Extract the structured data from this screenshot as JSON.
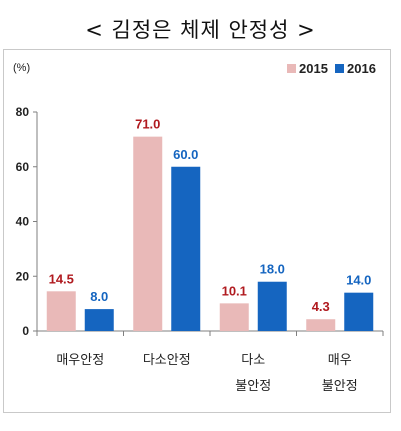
{
  "chart_data": {
    "type": "bar",
    "title": "< 김정은 체제 안정성 >",
    "unit_label": "(%)",
    "categories": [
      [
        "매우안정"
      ],
      [
        "다소안정"
      ],
      [
        "다소",
        "불안정"
      ],
      [
        "매우",
        "불안정"
      ]
    ],
    "series": [
      {
        "name": "2015",
        "values": [
          14.5,
          71.0,
          10.1,
          4.3
        ],
        "color": "#e9b9b8",
        "label_color": "#b01a1f"
      },
      {
        "name": "2016",
        "values": [
          8.0,
          60.0,
          18.0,
          14.0
        ],
        "color": "#1565c0",
        "label_color": "#1565c0"
      }
    ],
    "ylim": [
      0,
      80
    ],
    "yticks": [
      0,
      20,
      40,
      60,
      80
    ],
    "grid": false,
    "legend_position": "top-right"
  }
}
